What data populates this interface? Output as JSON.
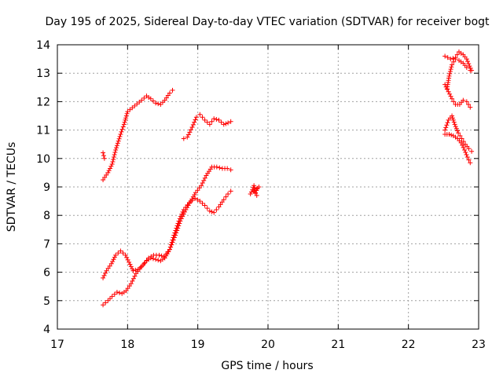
{
  "chart_data": {
    "type": "scatter",
    "title": "Day 195 of 2025, Sidereal Day-to-day VTEC variation (SDTVAR) for receiver bogt",
    "xlabel": "GPS time / hours",
    "ylabel": "SDTVAR / TECUs",
    "xlim": [
      17,
      23
    ],
    "ylim": [
      4,
      14
    ],
    "xticks": [
      "17",
      "18",
      "19",
      "20",
      "21",
      "22",
      "23"
    ],
    "yticks": [
      "4",
      "5",
      "6",
      "7",
      "8",
      "9",
      "10",
      "11",
      "12",
      "13",
      "14"
    ],
    "grid": true,
    "marker": "plus",
    "color": "#ff0000",
    "tracks": [
      [
        [
          17.65,
          10.2
        ],
        [
          17.67,
          10.0
        ]
      ],
      [
        [
          17.65,
          9.25
        ],
        [
          17.72,
          9.5
        ],
        [
          17.78,
          9.8
        ],
        [
          17.83,
          10.3
        ],
        [
          17.9,
          10.85
        ],
        [
          17.95,
          11.2
        ],
        [
          18.0,
          11.65
        ],
        [
          18.1,
          11.85
        ],
        [
          18.2,
          12.05
        ],
        [
          18.27,
          12.2
        ],
        [
          18.33,
          12.1
        ],
        [
          18.4,
          11.95
        ],
        [
          18.47,
          11.9
        ],
        [
          18.53,
          12.05
        ],
        [
          18.6,
          12.3
        ],
        [
          18.64,
          12.4
        ]
      ],
      [
        [
          18.8,
          10.7
        ],
        [
          18.85,
          10.75
        ],
        [
          18.92,
          11.1
        ],
        [
          18.98,
          11.45
        ],
        [
          19.03,
          11.55
        ],
        [
          19.1,
          11.35
        ],
        [
          19.17,
          11.2
        ],
        [
          19.23,
          11.4
        ],
        [
          19.3,
          11.35
        ],
        [
          19.37,
          11.2
        ],
        [
          19.43,
          11.25
        ],
        [
          19.47,
          11.3
        ]
      ],
      [
        [
          17.65,
          5.8
        ],
        [
          17.7,
          6.05
        ],
        [
          17.77,
          6.3
        ],
        [
          17.83,
          6.6
        ],
        [
          17.9,
          6.75
        ],
        [
          17.97,
          6.6
        ],
        [
          18.02,
          6.35
        ],
        [
          18.08,
          6.05
        ],
        [
          18.15,
          6.1
        ],
        [
          18.22,
          6.25
        ],
        [
          18.3,
          6.5
        ],
        [
          18.37,
          6.6
        ],
        [
          18.45,
          6.6
        ],
        [
          18.52,
          6.55
        ],
        [
          18.6,
          6.8
        ],
        [
          18.66,
          7.3
        ],
        [
          18.73,
          7.8
        ],
        [
          18.8,
          8.2
        ],
        [
          18.88,
          8.45
        ],
        [
          18.96,
          8.6
        ],
        [
          19.03,
          8.5
        ],
        [
          19.1,
          8.35
        ],
        [
          19.17,
          8.15
        ],
        [
          19.23,
          8.1
        ],
        [
          19.3,
          8.3
        ],
        [
          19.37,
          8.55
        ],
        [
          19.43,
          8.75
        ],
        [
          19.47,
          8.85
        ]
      ],
      [
        [
          17.65,
          4.85
        ],
        [
          17.72,
          5.0
        ],
        [
          17.78,
          5.15
        ],
        [
          17.85,
          5.3
        ],
        [
          17.92,
          5.25
        ],
        [
          17.98,
          5.35
        ],
        [
          18.05,
          5.6
        ],
        [
          18.12,
          5.95
        ],
        [
          18.2,
          6.2
        ],
        [
          18.27,
          6.4
        ],
        [
          18.33,
          6.5
        ],
        [
          18.4,
          6.45
        ],
        [
          18.47,
          6.4
        ],
        [
          18.53,
          6.5
        ],
        [
          18.6,
          6.8
        ],
        [
          18.68,
          7.3
        ],
        [
          18.75,
          7.8
        ],
        [
          18.83,
          8.2
        ],
        [
          18.9,
          8.5
        ],
        [
          18.97,
          8.8
        ],
        [
          19.05,
          9.05
        ],
        [
          19.12,
          9.4
        ],
        [
          19.2,
          9.7
        ],
        [
          19.27,
          9.7
        ],
        [
          19.35,
          9.65
        ],
        [
          19.42,
          9.65
        ],
        [
          19.47,
          9.6
        ]
      ],
      [
        [
          19.75,
          8.75
        ],
        [
          19.78,
          8.9
        ],
        [
          19.8,
          9.05
        ],
        [
          19.82,
          8.8
        ],
        [
          19.85,
          8.95
        ],
        [
          19.87,
          9.0
        ],
        [
          19.8,
          8.85
        ],
        [
          19.84,
          8.7
        ]
      ],
      [
        [
          22.52,
          13.6
        ],
        [
          22.6,
          13.5
        ],
        [
          22.67,
          13.55
        ],
        [
          22.72,
          13.75
        ],
        [
          22.78,
          13.65
        ],
        [
          22.83,
          13.5
        ],
        [
          22.87,
          13.25
        ],
        [
          22.9,
          13.1
        ]
      ],
      [
        [
          22.55,
          12.45
        ],
        [
          22.58,
          12.9
        ],
        [
          22.62,
          13.3
        ],
        [
          22.67,
          13.5
        ],
        [
          22.72,
          13.45
        ],
        [
          22.78,
          13.35
        ],
        [
          22.83,
          13.2
        ],
        [
          22.88,
          13.1
        ]
      ],
      [
        [
          22.52,
          12.6
        ],
        [
          22.57,
          12.35
        ],
        [
          22.62,
          12.1
        ],
        [
          22.67,
          11.9
        ],
        [
          22.73,
          11.9
        ],
        [
          22.78,
          12.05
        ],
        [
          22.83,
          12.0
        ],
        [
          22.88,
          11.8
        ]
      ],
      [
        [
          22.52,
          11.0
        ],
        [
          22.57,
          11.35
        ],
        [
          22.62,
          11.5
        ],
        [
          22.66,
          11.2
        ],
        [
          22.71,
          10.9
        ],
        [
          22.76,
          10.7
        ],
        [
          22.81,
          10.5
        ],
        [
          22.86,
          10.35
        ],
        [
          22.9,
          10.25
        ]
      ],
      [
        [
          22.52,
          10.85
        ],
        [
          22.58,
          10.85
        ],
        [
          22.64,
          10.8
        ],
        [
          22.7,
          10.7
        ],
        [
          22.75,
          10.55
        ],
        [
          22.8,
          10.3
        ],
        [
          22.84,
          10.05
        ],
        [
          22.88,
          9.85
        ]
      ]
    ]
  }
}
